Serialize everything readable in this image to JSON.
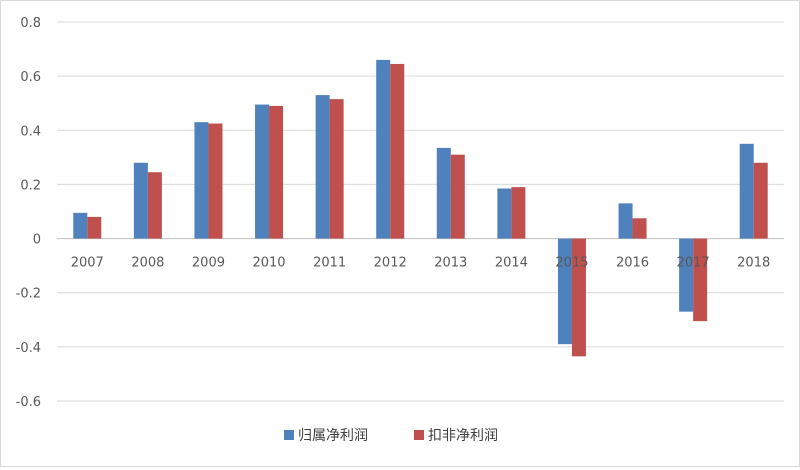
{
  "chart_data": {
    "type": "bar",
    "categories": [
      "2007",
      "2008",
      "2009",
      "2010",
      "2011",
      "2012",
      "2013",
      "2014",
      "2015",
      "2016",
      "2017",
      "2018"
    ],
    "series": [
      {
        "name": "归属净利润",
        "color": "#4f81bd",
        "values": [
          0.095,
          0.28,
          0.43,
          0.495,
          0.53,
          0.66,
          0.335,
          0.185,
          -0.39,
          0.13,
          -0.27,
          0.35
        ]
      },
      {
        "name": "扣非净利润",
        "color": "#c0504d",
        "values": [
          0.08,
          0.245,
          0.425,
          0.49,
          0.515,
          0.645,
          0.31,
          0.19,
          -0.435,
          0.075,
          -0.305,
          0.28
        ]
      }
    ],
    "yticks": [
      "0.8",
      "0.6",
      "0.4",
      "0.2",
      "0",
      "-0.2",
      "-0.4",
      "-0.6"
    ],
    "ylim": [
      -0.6,
      0.8
    ],
    "grid": true,
    "legend_position": "bottom"
  }
}
